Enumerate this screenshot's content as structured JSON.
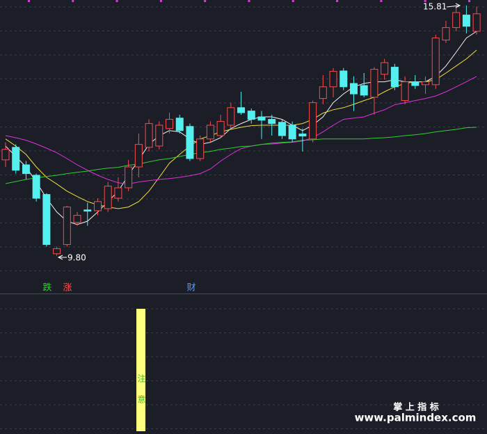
{
  "chart_data": {
    "type": "candlestick",
    "ylim": [
      8.93,
      15.93
    ],
    "up_color": "#ff4a4a",
    "down_color": "#54f0f0",
    "open": [
      12.1,
      12.4,
      11.98,
      11.73,
      11.27,
      9.85,
      10.07,
      10.6,
      10.9,
      10.88,
      10.93,
      11.18,
      11.43,
      11.93,
      12.4,
      12.43,
      12.85,
      13.1,
      12.9,
      12.13,
      12.6,
      12.68,
      12.93,
      13.35,
      13.27,
      13.13,
      13.07,
      13.0,
      12.93,
      12.72,
      12.6,
      13.57,
      13.85,
      14.23,
      13.93,
      13.88,
      13.6,
      14.15,
      14.32,
      13.52,
      13.97,
      13.9,
      13.9,
      14.97,
      15.27,
      15.57,
      15.18
    ],
    "high": [
      12.52,
      12.47,
      12.07,
      11.77,
      11.3,
      10.02,
      11.0,
      10.85,
      11.07,
      11.18,
      11.57,
      11.68,
      12.1,
      12.73,
      13.07,
      13.02,
      13.23,
      13.18,
      12.97,
      12.68,
      13.02,
      13.18,
      13.47,
      13.73,
      13.33,
      13.27,
      13.18,
      13.07,
      13.02,
      12.85,
      13.52,
      14.13,
      14.3,
      14.3,
      14.1,
      14.18,
      14.32,
      14.52,
      14.4,
      14.1,
      14.13,
      14.1,
      15.1,
      15.43,
      15.81,
      15.8,
      15.77
    ],
    "low": [
      11.93,
      11.77,
      11.63,
      11.1,
      10.02,
      9.8,
      10.02,
      10.52,
      10.52,
      10.77,
      10.85,
      11.1,
      11.35,
      11.68,
      12.3,
      12.35,
      12.73,
      12.73,
      12.07,
      12.07,
      12.52,
      12.63,
      12.85,
      13.18,
      12.97,
      12.6,
      12.68,
      12.6,
      12.52,
      12.3,
      12.52,
      13.43,
      13.6,
      13.77,
      13.27,
      13.6,
      13.18,
      14.02,
      13.77,
      13.43,
      13.8,
      13.68,
      13.8,
      14.9,
      15.18,
      15.13,
      15.1
    ],
    "close": [
      12.35,
      11.85,
      11.77,
      11.18,
      10.07,
      9.97,
      10.97,
      10.77,
      10.87,
      11.1,
      11.47,
      11.43,
      11.93,
      12.47,
      12.97,
      12.93,
      13.07,
      12.8,
      12.13,
      12.6,
      12.93,
      13.02,
      13.35,
      13.23,
      13.07,
      13.05,
      12.97,
      12.68,
      12.6,
      12.67,
      13.47,
      13.85,
      14.22,
      13.85,
      13.68,
      13.65,
      14.27,
      14.43,
      13.85,
      13.97,
      13.88,
      13.97,
      15.02,
      15.27,
      15.63,
      15.3,
      15.6
    ],
    "series": [
      {
        "color": "#f2f2f2",
        "values": [
          12.43,
          12.18,
          11.93,
          11.57,
          11.18,
          10.85,
          10.63,
          10.55,
          10.63,
          10.85,
          11.1,
          11.35,
          11.73,
          12.1,
          12.47,
          12.68,
          12.8,
          12.77,
          12.6,
          12.47,
          12.52,
          12.63,
          12.85,
          12.97,
          13.07,
          13.13,
          13.13,
          13.07,
          12.93,
          12.8,
          12.93,
          13.13,
          13.47,
          13.68,
          13.85,
          13.93,
          13.97,
          13.97,
          14.02,
          13.97,
          13.97,
          13.97,
          14.1,
          14.35,
          14.68,
          15.02,
          15.18
        ]
      },
      {
        "color": "#f0e040",
        "values": [
          12.6,
          12.43,
          12.23,
          11.93,
          11.68,
          11.52,
          11.35,
          11.22,
          11.1,
          11.02,
          10.97,
          10.93,
          10.97,
          11.1,
          11.35,
          11.68,
          12.02,
          12.23,
          12.43,
          12.6,
          12.68,
          12.77,
          12.83,
          12.88,
          12.92,
          12.93,
          12.93,
          12.93,
          12.93,
          12.97,
          13.07,
          13.22,
          13.3,
          13.35,
          13.43,
          13.52,
          13.6,
          13.73,
          13.85,
          13.93,
          13.97,
          13.97,
          14.02,
          14.18,
          14.35,
          14.52,
          14.73
        ]
      },
      {
        "color": "#e030e0",
        "values": [
          12.68,
          12.63,
          12.57,
          12.48,
          12.38,
          12.27,
          12.13,
          11.98,
          11.85,
          11.73,
          11.63,
          11.55,
          11.52,
          11.57,
          11.6,
          11.63,
          11.65,
          11.68,
          11.72,
          11.77,
          11.88,
          12.07,
          12.23,
          12.37,
          12.43,
          12.47,
          12.48,
          12.5,
          12.52,
          12.55,
          12.63,
          12.77,
          12.93,
          13.07,
          13.1,
          13.13,
          13.22,
          13.3,
          13.42,
          13.47,
          13.52,
          13.57,
          13.63,
          13.73,
          13.85,
          13.97,
          14.1
        ]
      },
      {
        "color": "#30d030",
        "values": [
          11.53,
          11.58,
          11.63,
          11.67,
          11.7,
          11.73,
          11.77,
          11.8,
          11.83,
          11.87,
          11.9,
          11.92,
          11.97,
          12.0,
          12.05,
          12.1,
          12.13,
          12.18,
          12.23,
          12.27,
          12.3,
          12.35,
          12.38,
          12.42,
          12.43,
          12.47,
          12.5,
          12.52,
          12.53,
          12.57,
          12.58,
          12.6,
          12.6,
          12.6,
          12.6,
          12.6,
          12.62,
          12.63,
          12.65,
          12.68,
          12.7,
          12.73,
          12.77,
          12.8,
          12.83,
          12.87,
          12.88
        ]
      }
    ],
    "annotations": {
      "high": "15.81",
      "low": "9.80"
    },
    "signals": [
      {
        "text": "跌",
        "color": "#30d030"
      },
      {
        "text": "涨",
        "color": "#ff5050"
      },
      {
        "text": "财",
        "color": "#4a9cff"
      }
    ],
    "lower_panel": {
      "label": "注意",
      "color": "#ffff80"
    },
    "watermark": {
      "title": "掌 上 指 标",
      "url": "www.palmindex.com"
    }
  }
}
